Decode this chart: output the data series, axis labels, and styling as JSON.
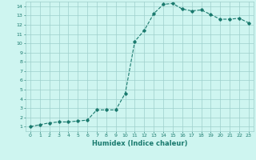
{
  "x": [
    0,
    1,
    2,
    3,
    4,
    5,
    6,
    7,
    8,
    9,
    10,
    11,
    12,
    13,
    14,
    15,
    16,
    17,
    18,
    19,
    20,
    21,
    22,
    23
  ],
  "y": [
    1.0,
    1.2,
    1.4,
    1.5,
    1.5,
    1.6,
    1.7,
    2.8,
    2.8,
    2.8,
    4.6,
    10.2,
    11.4,
    13.2,
    14.2,
    14.3,
    13.7,
    13.5,
    13.6,
    13.1,
    12.6,
    12.6,
    12.7,
    12.2
  ],
  "line_color": "#1a7a6e",
  "marker": "D",
  "marker_size": 1.8,
  "bg_color": "#cef5f0",
  "grid_color": "#9ecfcb",
  "xlabel": "Humidex (Indice chaleur)",
  "ylabel": "",
  "xlim": [
    -0.5,
    23.5
  ],
  "ylim": [
    0.5,
    14.5
  ],
  "yticks": [
    1,
    2,
    3,
    4,
    5,
    6,
    7,
    8,
    9,
    10,
    11,
    12,
    13,
    14
  ],
  "xticks": [
    0,
    1,
    2,
    3,
    4,
    5,
    6,
    7,
    8,
    9,
    10,
    11,
    12,
    13,
    14,
    15,
    16,
    17,
    18,
    19,
    20,
    21,
    22,
    23
  ],
  "tick_fontsize": 4.5,
  "label_fontsize": 6.0,
  "line_width": 0.8
}
